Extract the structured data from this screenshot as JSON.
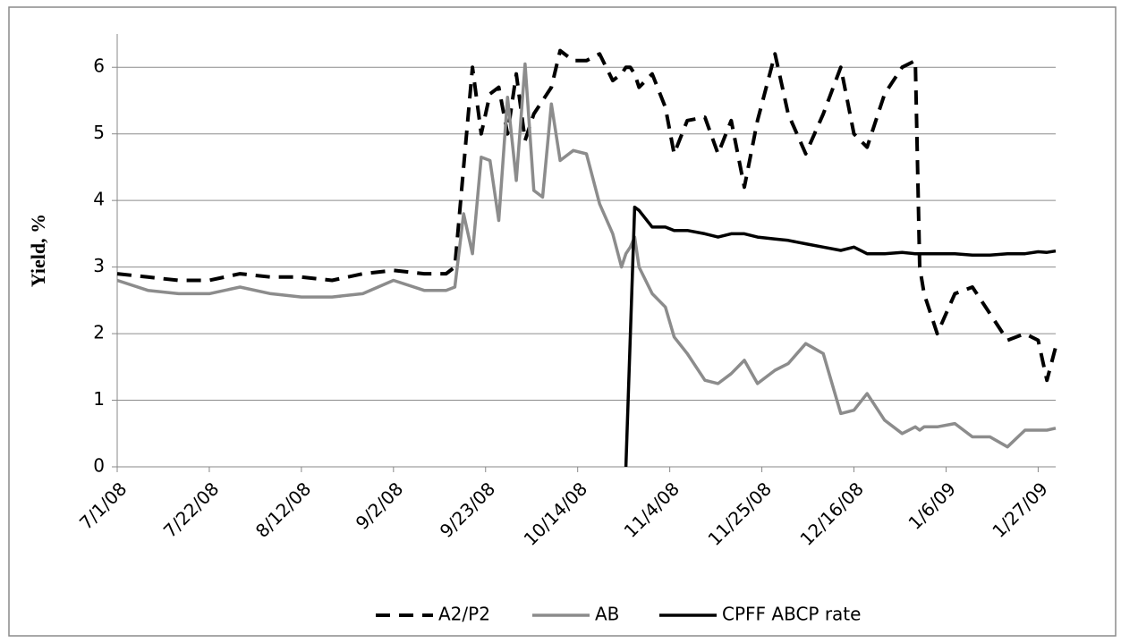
{
  "chart_data": {
    "type": "line",
    "y_label": "Yield, %",
    "x": [
      "7/1/08",
      "7/8/08",
      "7/15/08",
      "7/22/08",
      "7/29/08",
      "8/5/08",
      "8/12/08",
      "8/19/08",
      "8/26/08",
      "9/2/08",
      "9/9/08",
      "9/14/08",
      "9/16/08",
      "9/18/08",
      "9/20/08",
      "9/22/08",
      "9/24/08",
      "9/26/08",
      "9/28/08",
      "9/30/08",
      "10/2/08",
      "10/4/08",
      "10/6/08",
      "10/8/08",
      "10/10/08",
      "10/13/08",
      "10/16/08",
      "10/19/08",
      "10/22/08",
      "10/24/08",
      "10/25/08",
      "10/26/08",
      "10/27/08",
      "10/28/08",
      "10/31/08",
      "11/3/08",
      "11/5/08",
      "11/8/08",
      "11/12/08",
      "11/15/08",
      "11/18/08",
      "11/21/08",
      "11/24/08",
      "11/28/08",
      "12/1/08",
      "12/5/08",
      "12/9/08",
      "12/13/08",
      "12/16/08",
      "12/19/08",
      "12/23/08",
      "12/27/08",
      "12/30/08",
      "12/31/08",
      "1/1/09",
      "1/4/09",
      "1/8/09",
      "1/12/09",
      "1/16/09",
      "1/20/09",
      "1/24/09",
      "1/27/09",
      "1/29/09",
      "1/31/09"
    ],
    "series": [
      {
        "name": "A2/P2",
        "color": "#000000",
        "style": "dashed",
        "values": [
          2.9,
          2.85,
          2.8,
          2.8,
          2.9,
          2.85,
          2.85,
          2.8,
          2.9,
          2.95,
          2.9,
          2.9,
          3.0,
          4.5,
          6.0,
          5.0,
          5.6,
          5.7,
          5.0,
          5.9,
          4.9,
          5.3,
          5.5,
          5.7,
          6.25,
          6.1,
          6.1,
          6.2,
          5.8,
          5.9,
          6.0,
          6.0,
          5.9,
          5.7,
          5.9,
          5.4,
          4.7,
          5.2,
          5.25,
          4.7,
          5.2,
          4.2,
          5.2,
          6.2,
          5.3,
          4.7,
          5.3,
          6.0,
          5.0,
          4.8,
          5.6,
          6.0,
          6.1,
          3.0,
          2.6,
          2.0,
          2.6,
          2.7,
          2.3,
          1.9,
          2.0,
          1.9,
          1.3,
          1.8
        ]
      },
      {
        "name": "AB",
        "color": "#8c8c8c",
        "style": "solid",
        "values": [
          2.8,
          2.65,
          2.6,
          2.6,
          2.7,
          2.6,
          2.55,
          2.55,
          2.6,
          2.8,
          2.65,
          2.65,
          2.7,
          3.8,
          3.2,
          4.65,
          4.6,
          3.7,
          5.55,
          4.3,
          6.05,
          4.15,
          4.05,
          5.45,
          4.6,
          4.75,
          4.7,
          3.95,
          3.5,
          3.0,
          3.2,
          3.3,
          3.45,
          3.0,
          2.6,
          2.4,
          1.95,
          1.7,
          1.3,
          1.25,
          1.4,
          1.6,
          1.25,
          1.45,
          1.55,
          1.85,
          1.7,
          0.8,
          0.85,
          1.1,
          0.7,
          0.5,
          0.6,
          0.55,
          0.6,
          0.6,
          0.65,
          0.45,
          0.45,
          0.3,
          0.55,
          0.55,
          0.55,
          0.58
        ]
      },
      {
        "name": "CPFF ABCP rate",
        "color": "#000000",
        "style": "solid",
        "values": [
          null,
          null,
          null,
          null,
          null,
          null,
          null,
          null,
          null,
          null,
          null,
          null,
          null,
          null,
          null,
          null,
          null,
          null,
          null,
          null,
          null,
          null,
          null,
          null,
          null,
          null,
          null,
          null,
          null,
          null,
          0,
          1.95,
          3.9,
          3.85,
          3.6,
          3.6,
          3.55,
          3.55,
          3.5,
          3.45,
          3.5,
          3.5,
          3.45,
          3.42,
          3.4,
          3.35,
          3.3,
          3.25,
          3.3,
          3.2,
          3.2,
          3.22,
          3.2,
          3.2,
          3.2,
          3.2,
          3.2,
          3.18,
          3.18,
          3.2,
          3.2,
          3.23,
          3.22,
          3.24
        ]
      }
    ],
    "xlim": [
      "7/1/08",
      "1/31/09"
    ],
    "xticks": [
      "7/1/08",
      "7/22/08",
      "8/12/08",
      "9/2/08",
      "9/23/08",
      "10/14/08",
      "11/4/08",
      "11/25/08",
      "12/16/08",
      "1/6/09",
      "1/27/09"
    ],
    "ylim": [
      0,
      6.5
    ],
    "yticks": [
      0,
      1,
      2,
      3,
      4,
      5,
      6
    ],
    "grid": true,
    "legend": "bottom"
  }
}
